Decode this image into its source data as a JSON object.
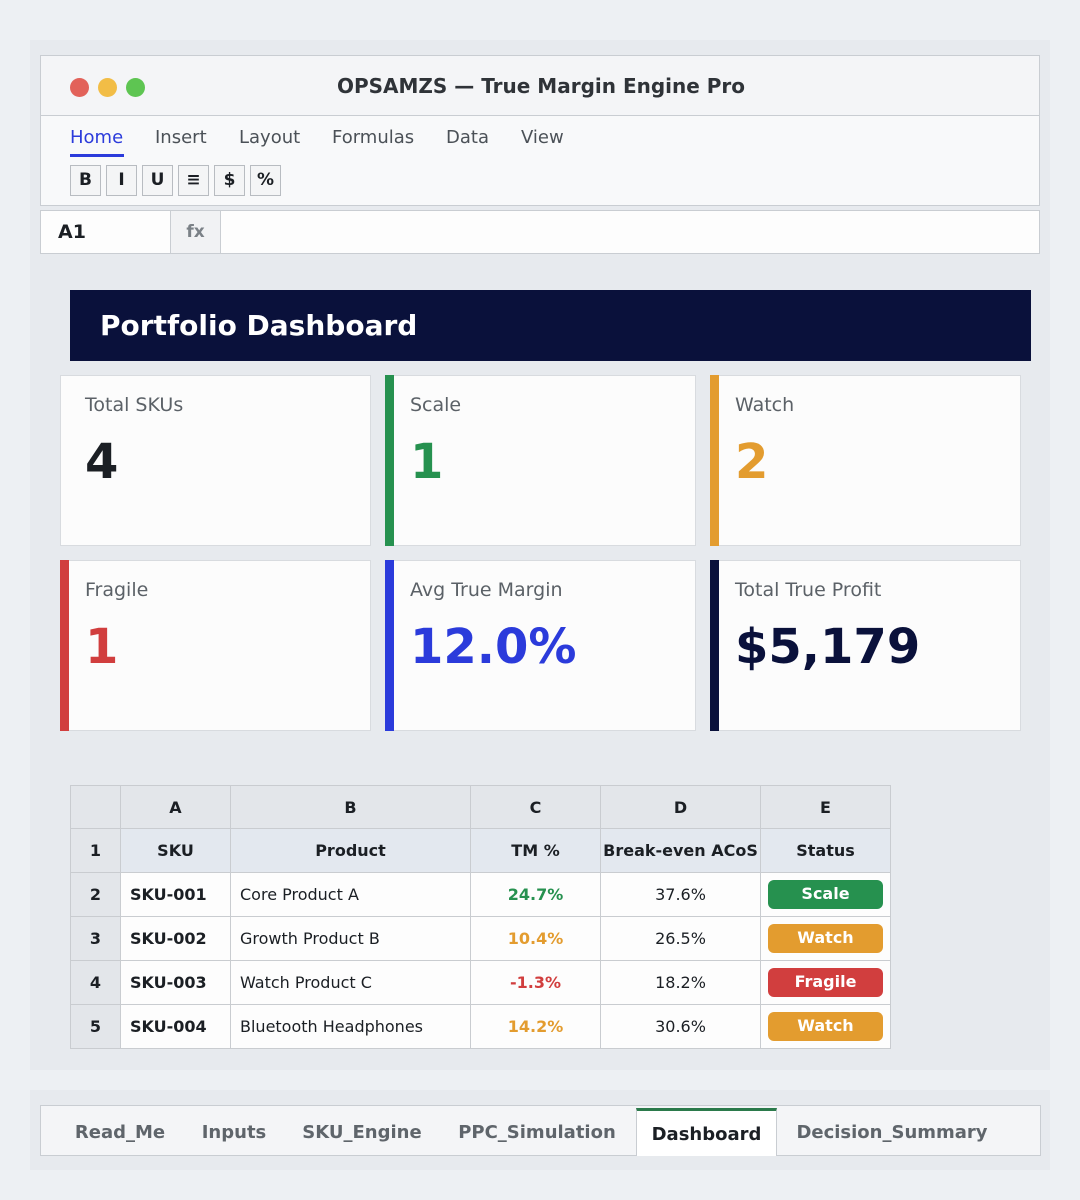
{
  "window": {
    "title": "OPSAMZS — True Margin Engine Pro",
    "controls": [
      "close",
      "minimize",
      "maximize"
    ]
  },
  "ribbon": {
    "tabs": [
      "Home",
      "Insert",
      "Layout",
      "Formulas",
      "Data",
      "View"
    ],
    "active_tab": "Home",
    "format_buttons": [
      "B",
      "I",
      "U",
      "≡",
      "$",
      "%"
    ]
  },
  "formula_bar": {
    "cell_ref": "A1",
    "fx_label": "fx",
    "formula": ""
  },
  "dashboard": {
    "title": "Portfolio Dashboard",
    "cards": [
      {
        "label": "Total SKUs",
        "value": "4",
        "color": "#1b1f24",
        "accent": ""
      },
      {
        "label": "Scale",
        "value": "1",
        "color": "#26914f",
        "accent": "#26914f"
      },
      {
        "label": "Watch",
        "value": "2",
        "color": "#e39c2f",
        "accent": "#e39c2f"
      },
      {
        "label": "Fragile",
        "value": "1",
        "color": "#d13e3e",
        "accent": "#d13e3e"
      },
      {
        "label": "Avg True Margin",
        "value": "12.0%",
        "color": "#2b3bdb",
        "accent": "#2b3bdb"
      },
      {
        "label": "Total True Profit",
        "value": "$5,179",
        "color": "#0a113b",
        "accent": "#0a113b"
      }
    ]
  },
  "sheet": {
    "columns": [
      "A",
      "B",
      "C",
      "D",
      "E"
    ],
    "row_numbers": [
      "1",
      "2",
      "3",
      "4",
      "5"
    ],
    "headers": [
      "SKU",
      "Product",
      "TM %",
      "Break-even ACoS",
      "Status"
    ],
    "rows": [
      {
        "sku": "SKU-001",
        "product": "Core Product A",
        "tm": "24.7%",
        "breakeven": "37.6%",
        "status": "Scale",
        "tm_color": "#26914f",
        "status_color": "#26914f"
      },
      {
        "sku": "SKU-002",
        "product": "Growth Product B",
        "tm": "10.4%",
        "breakeven": "26.5%",
        "status": "Watch",
        "tm_color": "#e39c2f",
        "status_color": "#e39c2f"
      },
      {
        "sku": "SKU-003",
        "product": "Watch Product C",
        "tm": "-1.3%",
        "breakeven": "18.2%",
        "status": "Fragile",
        "tm_color": "#d13e3e",
        "status_color": "#d13e3e"
      },
      {
        "sku": "SKU-004",
        "product": "Bluetooth Headphones",
        "tm": "14.2%",
        "breakeven": "30.6%",
        "status": "Watch",
        "tm_color": "#e39c2f",
        "status_color": "#e39c2f"
      }
    ]
  },
  "sheet_tabs": {
    "tabs": [
      "Read_Me",
      "Inputs",
      "SKU_Engine",
      "PPC_Simulation",
      "Dashboard",
      "Decision_Summary"
    ],
    "active": "Dashboard",
    "active_accent": "#2b7a4b"
  }
}
